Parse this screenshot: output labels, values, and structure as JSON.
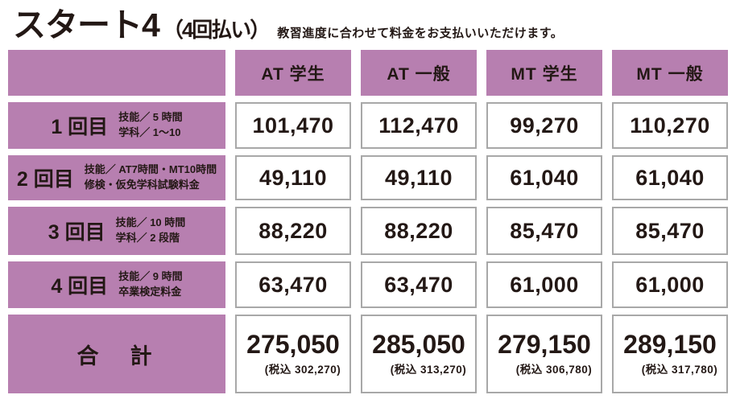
{
  "header": {
    "title": "スタート4",
    "title_paren": "（4回払い）",
    "subtitle": "教習進度に合わせて料金をお支払いいただけます。"
  },
  "colors": {
    "accent_purple": "#b77fb0",
    "text": "#231815",
    "cell_border": "#a8a8a8"
  },
  "table": {
    "columns": [
      "AT 学生",
      "AT 一般",
      "MT 学生",
      "MT 一般"
    ],
    "rows": [
      {
        "label": "1 回目",
        "note1": "技能／ 5 時間",
        "note2": "学科／ 1〜10",
        "values": [
          "101,470",
          "112,470",
          "99,270",
          "110,270"
        ]
      },
      {
        "label": "2 回目",
        "note1": "技能／ AT7時間・MT10時間",
        "note2": "修検・仮免学科試験料金",
        "values": [
          "49,110",
          "49,110",
          "61,040",
          "61,040"
        ]
      },
      {
        "label": "3 回目",
        "note1": "技能／ 10 時間",
        "note2": "学科／ 2 段階",
        "values": [
          "88,220",
          "88,220",
          "85,470",
          "85,470"
        ]
      },
      {
        "label": "4 回目",
        "note1": "技能／ 9 時間",
        "note2": "卒業検定料金",
        "values": [
          "63,470",
          "63,470",
          "61,000",
          "61,000"
        ]
      }
    ],
    "total": {
      "label": "合　計",
      "values": [
        "275,050",
        "285,050",
        "279,150",
        "289,150"
      ],
      "tax": [
        "(税込 302,270)",
        "(税込 313,270)",
        "(税込 306,780)",
        "(税込 317,780)"
      ]
    }
  }
}
